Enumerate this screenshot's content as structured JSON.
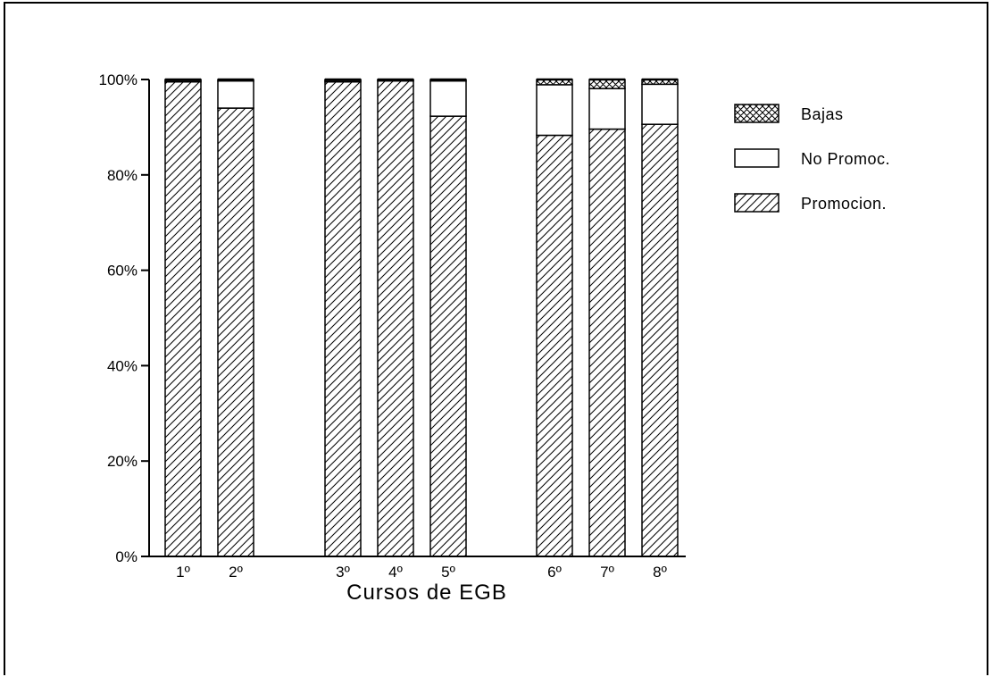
{
  "chart_data": {
    "type": "bar",
    "stacked": true,
    "categories": [
      "1º",
      "2º",
      "3º",
      "4º",
      "5º",
      "6º",
      "7º",
      "8º"
    ],
    "groups": [
      [
        0,
        1
      ],
      [
        2,
        3,
        4
      ],
      [
        5,
        6,
        7
      ]
    ],
    "series": [
      {
        "name": "Promocion.",
        "pattern": "diagonal-hatch",
        "values": [
          99.5,
          94.0,
          99.5,
          99.7,
          92.3,
          88.3,
          89.6,
          90.6
        ]
      },
      {
        "name": "No Promoc.",
        "pattern": "solid-white",
        "values": [
          0.3,
          5.7,
          0.3,
          0.2,
          7.4,
          10.6,
          8.5,
          8.4
        ]
      },
      {
        "name": "Bajas",
        "pattern": "cross-hatch",
        "values": [
          0.2,
          0.3,
          0.2,
          0.1,
          0.3,
          1.1,
          1.9,
          1.0
        ]
      }
    ],
    "y_ticks": [
      "0%",
      "20%",
      "40%",
      "60%",
      "80%",
      "100%"
    ],
    "ylim": [
      0,
      100
    ],
    "xlabel": "Cursos de EGB",
    "legend": {
      "placement": "top-right",
      "entries": [
        "Bajas",
        "No Promoc.",
        "Promocion."
      ]
    },
    "grid": false
  }
}
